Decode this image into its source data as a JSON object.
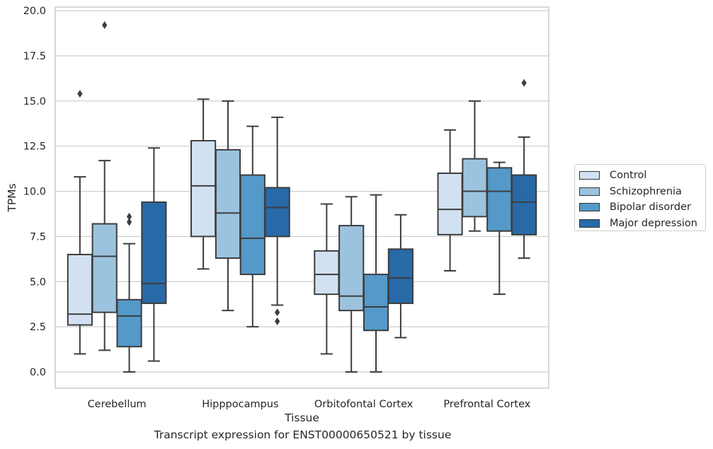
{
  "chart_data": {
    "type": "box",
    "title": "",
    "caption": "Transcript expression for ENST00000650521 by tissue",
    "xlabel": "Tissue",
    "ylabel": "TPMs",
    "ylim": [
      -0.9,
      20.2
    ],
    "yticks": [
      "0.0",
      "2.5",
      "5.0",
      "7.5",
      "10.0",
      "12.5",
      "15.0",
      "17.5",
      "20.0"
    ],
    "grid": true,
    "legend_position": "right",
    "categories": [
      "Cerebellum",
      "Hipppocampus",
      "Orbitofontal Cortex",
      "Prefrontal Cortex"
    ],
    "series": [
      {
        "name": "Control",
        "color": "#d1e1f1",
        "boxes": [
          {
            "whisker_low": 1.0,
            "q1": 2.6,
            "median": 3.2,
            "q3": 6.5,
            "whisker_high": 10.8,
            "outliers": [
              15.4
            ]
          },
          {
            "whisker_low": 5.7,
            "q1": 7.5,
            "median": 10.3,
            "q3": 12.8,
            "whisker_high": 15.1,
            "outliers": []
          },
          {
            "whisker_low": 1.0,
            "q1": 4.3,
            "median": 5.4,
            "q3": 6.7,
            "whisker_high": 9.3,
            "outliers": []
          },
          {
            "whisker_low": 5.6,
            "q1": 7.6,
            "median": 9.0,
            "q3": 11.0,
            "whisker_high": 13.4,
            "outliers": []
          }
        ]
      },
      {
        "name": "Schizophrenia",
        "color": "#9bc3de",
        "boxes": [
          {
            "whisker_low": 1.2,
            "q1": 3.3,
            "median": 6.4,
            "q3": 8.2,
            "whisker_high": 11.7,
            "outliers": [
              19.2
            ]
          },
          {
            "whisker_low": 3.4,
            "q1": 6.3,
            "median": 8.8,
            "q3": 12.3,
            "whisker_high": 15.0,
            "outliers": []
          },
          {
            "whisker_low": 0.0,
            "q1": 3.4,
            "median": 4.2,
            "q3": 8.1,
            "whisker_high": 9.7,
            "outliers": []
          },
          {
            "whisker_low": 7.8,
            "q1": 8.6,
            "median": 10.0,
            "q3": 11.8,
            "whisker_high": 15.0,
            "outliers": []
          }
        ]
      },
      {
        "name": "Bipolar disorder",
        "color": "#5499c8",
        "boxes": [
          {
            "whisker_low": 0.0,
            "q1": 1.4,
            "median": 3.1,
            "q3": 4.0,
            "whisker_high": 7.1,
            "outliers": [
              8.3,
              8.6
            ]
          },
          {
            "whisker_low": 2.5,
            "q1": 5.4,
            "median": 7.4,
            "q3": 10.9,
            "whisker_high": 13.6,
            "outliers": []
          },
          {
            "whisker_low": 0.0,
            "q1": 2.3,
            "median": 3.6,
            "q3": 5.4,
            "whisker_high": 9.8,
            "outliers": []
          },
          {
            "whisker_low": 4.3,
            "q1": 7.8,
            "median": 10.0,
            "q3": 11.3,
            "whisker_high": 11.6,
            "outliers": []
          }
        ]
      },
      {
        "name": "Major depression",
        "color": "#2869a8",
        "boxes": [
          {
            "whisker_low": 0.6,
            "q1": 3.8,
            "median": 4.9,
            "q3": 9.4,
            "whisker_high": 12.4,
            "outliers": []
          },
          {
            "whisker_low": 3.7,
            "q1": 7.5,
            "median": 9.1,
            "q3": 10.2,
            "whisker_high": 14.1,
            "outliers": [
              2.8,
              3.3
            ]
          },
          {
            "whisker_low": 1.9,
            "q1": 3.8,
            "median": 5.2,
            "q3": 6.8,
            "whisker_high": 8.7,
            "outliers": []
          },
          {
            "whisker_low": 6.3,
            "q1": 7.6,
            "median": 9.4,
            "q3": 10.9,
            "whisker_high": 13.0,
            "outliers": [
              16.0
            ]
          }
        ]
      }
    ]
  }
}
